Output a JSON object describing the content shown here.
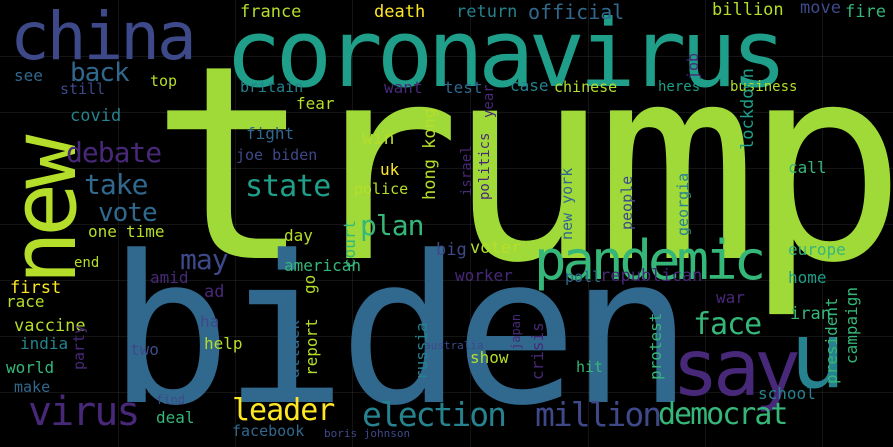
{
  "wordcloud": {
    "colors": {
      "background": "#000000",
      "lime": "#b5de2b",
      "yellowgreen": "#a0da39",
      "teal": "#1f9e89",
      "green": "#35b779",
      "blue": "#31688e",
      "slate": "#3e4989",
      "purple": "#482878",
      "deeppurple": "#440154",
      "cyan": "#26828e",
      "yellow": "#fde725"
    },
    "words": [
      {
        "text": "trump",
        "color": "#a0da39"
      },
      {
        "text": "biden",
        "color": "#31688e"
      },
      {
        "text": "coronavirus",
        "color": "#1f9e89"
      },
      {
        "text": "china",
        "color": "#3e4989"
      },
      {
        "text": "new",
        "color": "#b5de2b"
      },
      {
        "text": "pandemic",
        "color": "#35b779"
      },
      {
        "text": "say",
        "color": "#482878"
      },
      {
        "text": "u",
        "color": "#26828e"
      },
      {
        "text": "virus",
        "color": "#482878"
      },
      {
        "text": "election",
        "color": "#26828e"
      },
      {
        "text": "million",
        "color": "#3e4989"
      },
      {
        "text": "democrat",
        "color": "#35b779"
      },
      {
        "text": "leader",
        "color": "#fde725"
      },
      {
        "text": "face",
        "color": "#35b779"
      },
      {
        "text": "state",
        "color": "#1f9e89"
      },
      {
        "text": "debate",
        "color": "#482878"
      },
      {
        "text": "take",
        "color": "#31688e"
      },
      {
        "text": "vote",
        "color": "#31688e"
      },
      {
        "text": "plan",
        "color": "#35b779"
      },
      {
        "text": "may",
        "color": "#3e4989"
      },
      {
        "text": "back",
        "color": "#31688e"
      },
      {
        "text": "france",
        "color": "#b5de2b"
      },
      {
        "text": "death",
        "color": "#fde725"
      },
      {
        "text": "return",
        "color": "#26828e"
      },
      {
        "text": "official",
        "color": "#31688e"
      },
      {
        "text": "billion",
        "color": "#b5de2b"
      },
      {
        "text": "move",
        "color": "#3e4989"
      },
      {
        "text": "fire",
        "color": "#35b779"
      },
      {
        "text": "covid",
        "color": "#26828e"
      },
      {
        "text": "see",
        "color": "#31688e"
      },
      {
        "text": "top",
        "color": "#b5de2b"
      },
      {
        "text": "still",
        "color": "#3e4989"
      },
      {
        "text": "britain",
        "color": "#26828e"
      },
      {
        "text": "want",
        "color": "#482878"
      },
      {
        "text": "test",
        "color": "#31688e"
      },
      {
        "text": "case",
        "color": "#26828e"
      },
      {
        "text": "chinese",
        "color": "#b5de2b"
      },
      {
        "text": "heres",
        "color": "#1f9e89"
      },
      {
        "text": "business",
        "color": "#b5de2b"
      },
      {
        "text": "fear",
        "color": "#b5de2b"
      },
      {
        "text": "fight",
        "color": "#31688e"
      },
      {
        "text": "joe biden",
        "color": "#3e4989"
      },
      {
        "text": "win",
        "color": "#b5de2b"
      },
      {
        "text": "hong kong",
        "color": "#b5de2b"
      },
      {
        "text": "lockdown",
        "color": "#1f9e89"
      },
      {
        "text": "year",
        "color": "#482878"
      },
      {
        "text": "israel",
        "color": "#482878"
      },
      {
        "text": "politics",
        "color": "#482878"
      },
      {
        "text": "call",
        "color": "#35b779"
      },
      {
        "text": "uk",
        "color": "#fde725"
      },
      {
        "text": "police",
        "color": "#b5de2b"
      },
      {
        "text": "new york",
        "color": "#31688e"
      },
      {
        "text": "people",
        "color": "#3e4989"
      },
      {
        "text": "georgia",
        "color": "#26828e"
      },
      {
        "text": "job",
        "color": "#482878"
      },
      {
        "text": "one",
        "color": "#b5de2b"
      },
      {
        "text": "time",
        "color": "#b5de2b"
      },
      {
        "text": "day",
        "color": "#b5de2b"
      },
      {
        "text": "big",
        "color": "#3e4989"
      },
      {
        "text": "voter",
        "color": "#b5de2b"
      },
      {
        "text": "end",
        "color": "#b5de2b"
      },
      {
        "text": "american",
        "color": "#35b779"
      },
      {
        "text": "europe",
        "color": "#35b779"
      },
      {
        "text": "home",
        "color": "#1f9e89"
      },
      {
        "text": "worker",
        "color": "#482878"
      },
      {
        "text": "poll",
        "color": "#31688e"
      },
      {
        "text": "republican",
        "color": "#482878"
      },
      {
        "text": "first",
        "color": "#fde725"
      },
      {
        "text": "amid",
        "color": "#482878"
      },
      {
        "text": "court",
        "color": "#35b779"
      },
      {
        "text": "ad",
        "color": "#482878"
      },
      {
        "text": "iran",
        "color": "#35b779"
      },
      {
        "text": "race",
        "color": "#b5de2b"
      },
      {
        "text": "go",
        "color": "#b5de2b"
      },
      {
        "text": "war",
        "color": "#482878"
      },
      {
        "text": "vaccine",
        "color": "#b5de2b"
      },
      {
        "text": "ha",
        "color": "#3e4989"
      },
      {
        "text": "india",
        "color": "#26828e"
      },
      {
        "text": "two",
        "color": "#3e4989"
      },
      {
        "text": "help",
        "color": "#b5de2b"
      },
      {
        "text": "attack",
        "color": "#31688e"
      },
      {
        "text": "report",
        "color": "#b5de2b"
      },
      {
        "text": "russia",
        "color": "#26828e"
      },
      {
        "text": "protest",
        "color": "#35b779"
      },
      {
        "text": "president",
        "color": "#35b779"
      },
      {
        "text": "campaign",
        "color": "#35b779"
      },
      {
        "text": "world",
        "color": "#35b779"
      },
      {
        "text": "party",
        "color": "#482878"
      },
      {
        "text": "show",
        "color": "#b5de2b"
      },
      {
        "text": "crisis",
        "color": "#482878"
      },
      {
        "text": "hit",
        "color": "#35b779"
      },
      {
        "text": "make",
        "color": "#31688e"
      },
      {
        "text": "school",
        "color": "#26828e"
      },
      {
        "text": "deal",
        "color": "#35b779"
      },
      {
        "text": "facebook",
        "color": "#31688e"
      },
      {
        "text": "find",
        "color": "#3e4989"
      },
      {
        "text": "japan",
        "color": "#482878"
      },
      {
        "text": "australia",
        "color": "#3e4989"
      },
      {
        "text": "boris johnson",
        "color": "#3e4989"
      }
    ]
  }
}
